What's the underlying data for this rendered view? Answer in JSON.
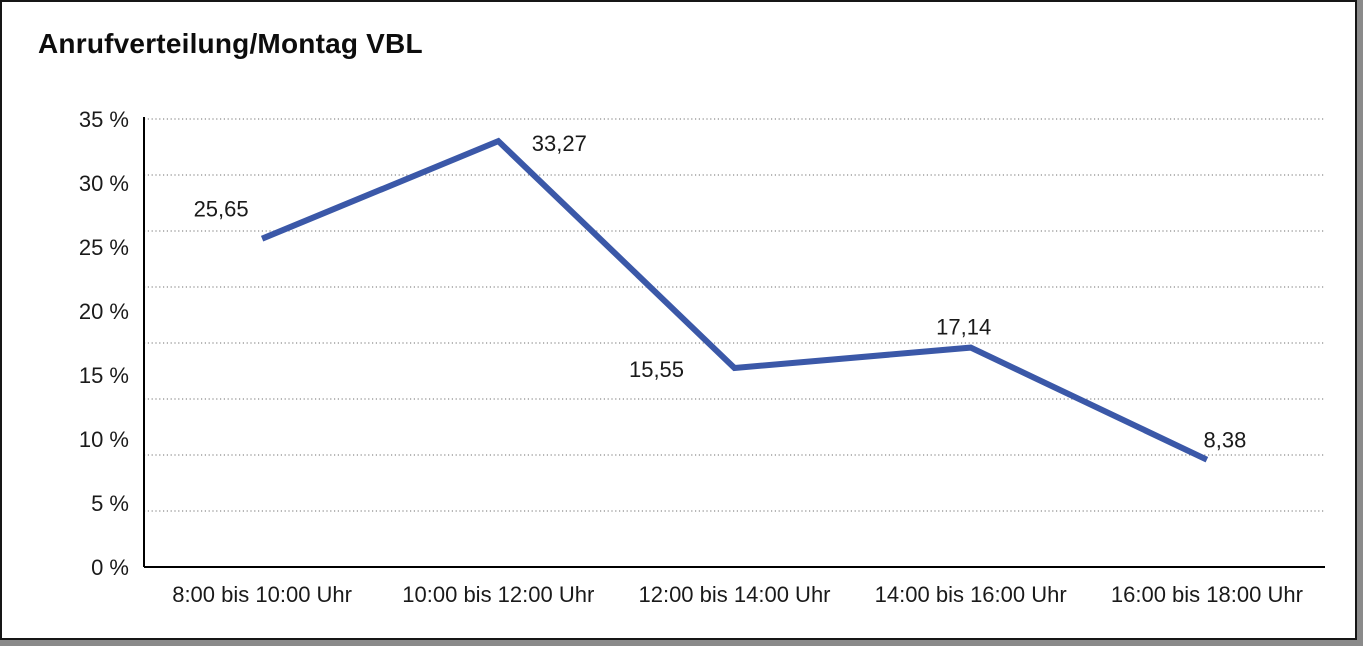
{
  "chart_data": {
    "type": "line",
    "title": "Anrufverteilung/Montag VBL",
    "categories": [
      "8:00 bis 10:00 Uhr",
      "10:00 bis 12:00 Uhr",
      "12:00 bis 14:00 Uhr",
      "14:00 bis 16:00 Uhr",
      "16:00 bis 18:00 Uhr"
    ],
    "values": [
      25.65,
      33.27,
      15.55,
      17.14,
      8.38
    ],
    "data_labels": [
      "25,65",
      "33,27",
      "15,55",
      "17,14",
      "8,38"
    ],
    "y_tick_labels": [
      "35 %",
      "30 %",
      "25 %",
      "20 %",
      "15 %",
      "10 %",
      "5 %",
      "0 %"
    ],
    "ylim": [
      0,
      35
    ],
    "unit": "%",
    "grid": "horizontal-dotted",
    "legend": "none",
    "line_color": "#3B58A8",
    "axis_color": "#000000",
    "gridline_color": "#8c8c8c",
    "text_color": "#1a1a1a"
  }
}
